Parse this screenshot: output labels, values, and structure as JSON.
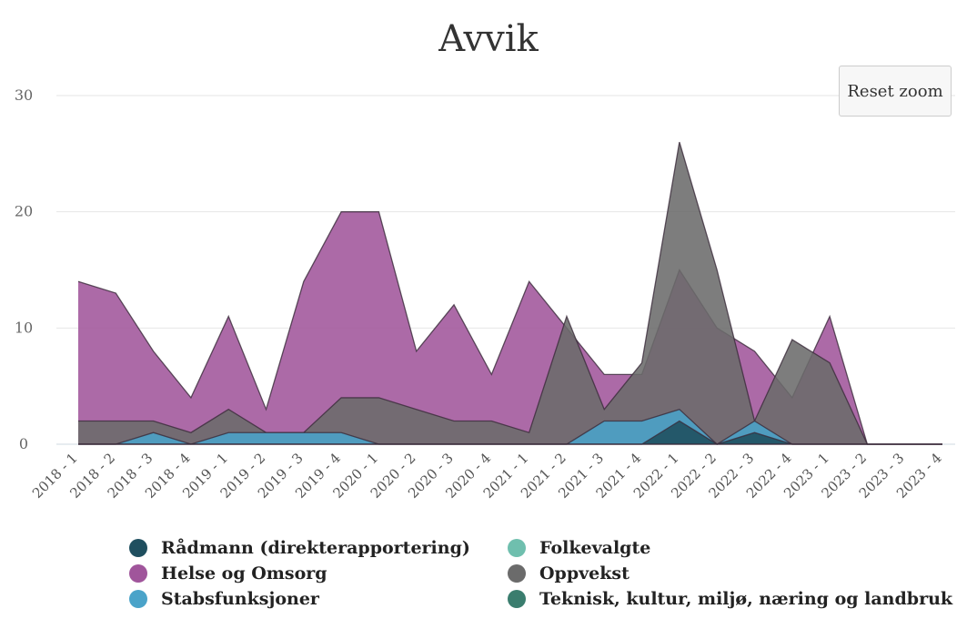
{
  "reset_zoom_label": "Reset zoom",
  "chart_data": {
    "type": "area",
    "title": "Avvik",
    "xlabel": "",
    "ylabel": "",
    "ylim": [
      0,
      30
    ],
    "yticks": [
      0,
      10,
      20,
      30
    ],
    "grid": true,
    "legend_position": "bottom",
    "categories": [
      "2018 - 1",
      "2018 - 2",
      "2018 - 3",
      "2018 - 4",
      "2019 - 1",
      "2019 - 2",
      "2019 - 3",
      "2019 - 4",
      "2020 - 1",
      "2020 - 2",
      "2020 - 3",
      "2020 - 4",
      "2021 - 1",
      "2021 - 2",
      "2021 - 3",
      "2021 - 4",
      "2022 - 1",
      "2022 - 2",
      "2022 - 3",
      "2022 - 4",
      "2023 - 1",
      "2023 - 2",
      "2023 - 3",
      "2023 - 4"
    ],
    "series": [
      {
        "name": "Helse og Omsorg",
        "color": "#a0559b",
        "values": [
          14,
          13,
          8,
          4,
          11,
          3,
          14,
          20,
          20,
          8,
          12,
          6,
          14,
          10,
          6,
          6,
          15,
          10,
          8,
          4,
          11,
          0,
          0,
          0
        ]
      },
      {
        "name": "Oppvekst",
        "color": "#6b6b6b",
        "values": [
          2,
          2,
          2,
          1,
          3,
          1,
          1,
          4,
          4,
          3,
          2,
          2,
          1,
          11,
          3,
          7,
          26,
          15,
          2,
          9,
          7,
          0,
          0,
          0
        ]
      },
      {
        "name": "Stabsfunksjoner",
        "color": "#4aa3c9",
        "values": [
          0,
          0,
          1,
          0,
          1,
          1,
          1,
          1,
          0,
          0,
          0,
          0,
          0,
          0,
          2,
          2,
          3,
          0,
          2,
          0,
          0,
          0,
          0,
          0
        ]
      },
      {
        "name": "Rådmann (direkterapportering)",
        "color": "#1f4f5f",
        "values": [
          0,
          0,
          0,
          0,
          0,
          0,
          0,
          0,
          0,
          0,
          0,
          0,
          0,
          0,
          0,
          0,
          2,
          0,
          1,
          0,
          0,
          0,
          0,
          0
        ]
      },
      {
        "name": "Folkevalgte",
        "color": "#6fbfae",
        "values": [
          0,
          0,
          0,
          0,
          0,
          0,
          0,
          0,
          0,
          0,
          0,
          0,
          0,
          0,
          0,
          0,
          0,
          0,
          0,
          0,
          0,
          0,
          0,
          0
        ]
      },
      {
        "name": "Teknisk, kultur, miljø, næring og landbruk",
        "color": "#3a7d6e",
        "values": [
          0,
          0,
          0,
          0,
          0,
          0,
          0,
          0,
          0,
          0,
          0,
          0,
          0,
          0,
          0,
          0,
          0,
          0,
          0,
          0,
          0,
          0,
          0,
          0
        ]
      }
    ],
    "legend": [
      {
        "label": "Rådmann (direkterapportering)",
        "color": "#1f4f5f"
      },
      {
        "label": "Folkevalgte",
        "color": "#6fbfae"
      },
      {
        "label": "Helse og Omsorg",
        "color": "#a0559b"
      },
      {
        "label": "Oppvekst",
        "color": "#6b6b6b"
      },
      {
        "label": "Stabsfunksjoner",
        "color": "#4aa3c9"
      },
      {
        "label": "Teknisk, kultur, miljø, næring og landbruk",
        "color": "#3a7d6e"
      }
    ]
  }
}
